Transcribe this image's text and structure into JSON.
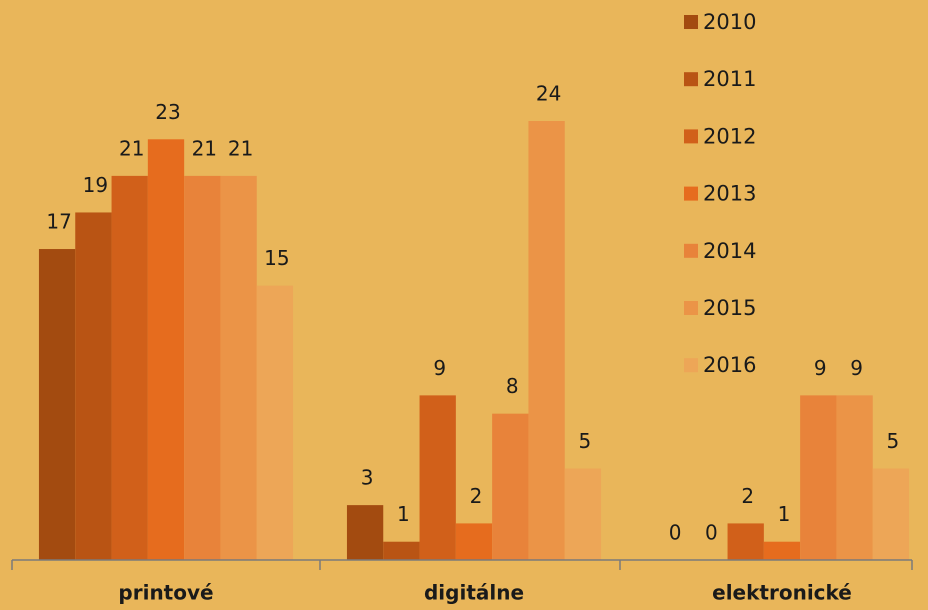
{
  "chart_data": {
    "type": "bar",
    "categories": [
      "printové",
      "digitálne",
      "elektronické"
    ],
    "series": [
      {
        "name": "2010",
        "color": "#a34b10",
        "values": [
          17,
          3,
          0
        ]
      },
      {
        "name": "2011",
        "color": "#b95414",
        "values": [
          19,
          1,
          0
        ]
      },
      {
        "name": "2012",
        "color": "#d1601a",
        "values": [
          21,
          9,
          2
        ]
      },
      {
        "name": "2013",
        "color": "#e66c1e",
        "values": [
          23,
          2,
          1
        ]
      },
      {
        "name": "2014",
        "color": "#e8833a",
        "values": [
          21,
          8,
          9
        ]
      },
      {
        "name": "2015",
        "color": "#eb9447",
        "values": [
          21,
          24,
          9
        ]
      },
      {
        "name": "2016",
        "color": "#eda657",
        "values": [
          15,
          5,
          5
        ]
      }
    ],
    "legend": "right"
  }
}
